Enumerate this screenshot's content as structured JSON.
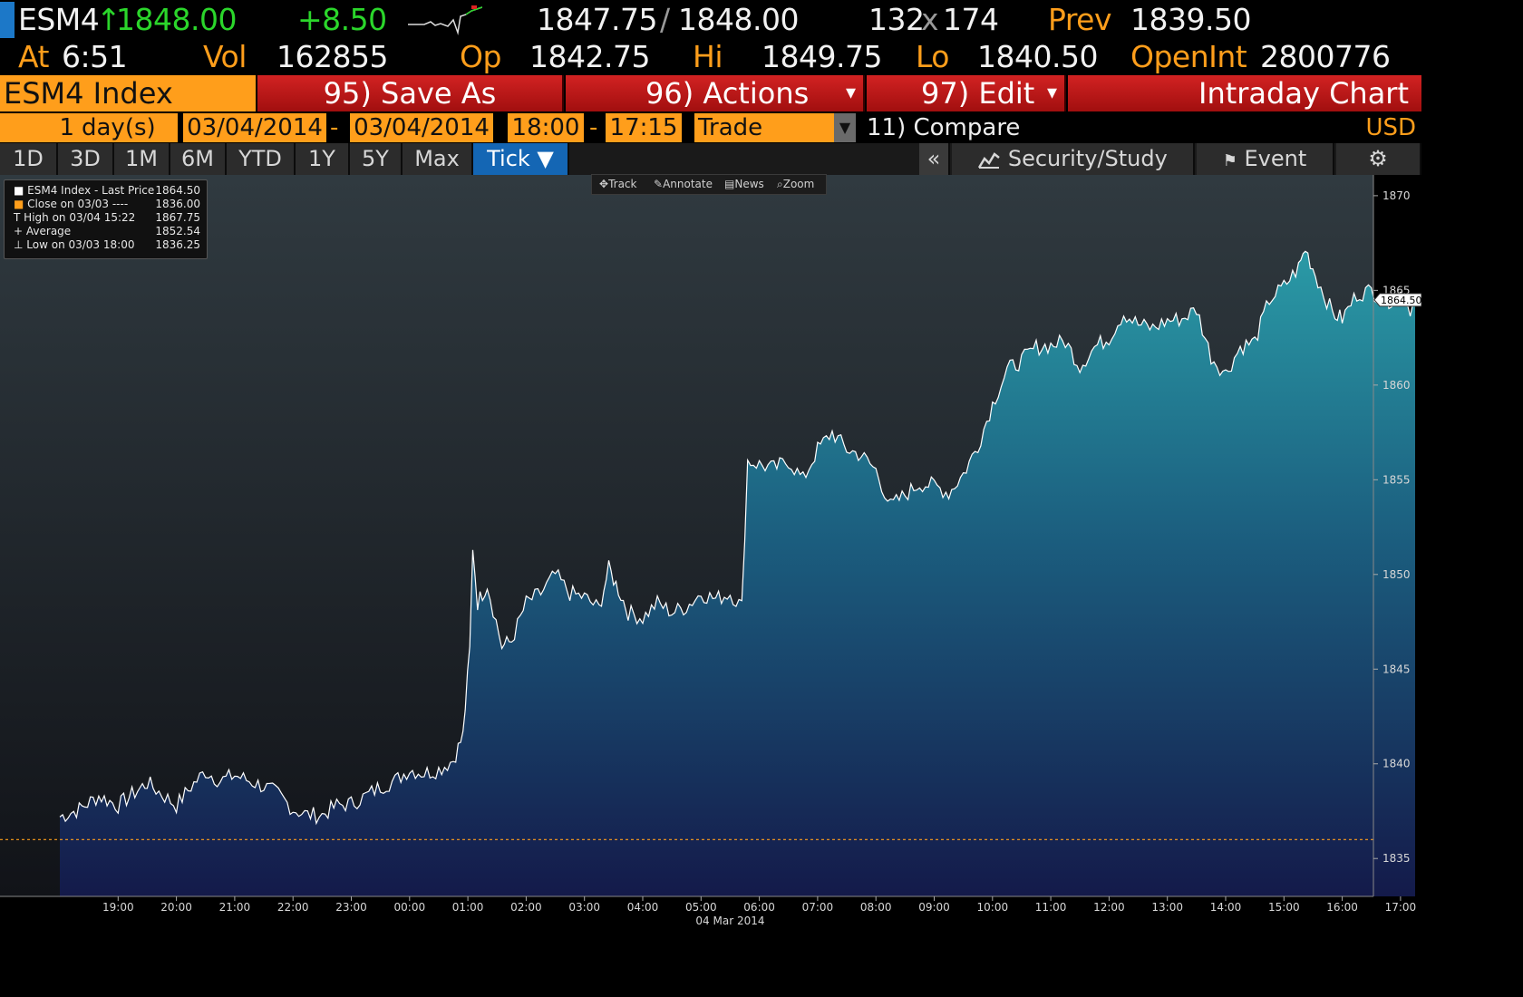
{
  "quote": {
    "ticker": "ESM4",
    "arrow": "↑",
    "last": "1848.00",
    "change": "+8.50",
    "bid": "1847.75",
    "bid_sep": "/",
    "ask": "1848.00",
    "bid_size": "132",
    "size_sep": "x",
    "ask_size": "174",
    "prev_label": "Prev",
    "prev": "1839.50",
    "at_label": "At",
    "time": "6:51",
    "vol_label": "Vol",
    "vol": "162855",
    "op_label": "Op",
    "op": "1842.75",
    "hi_label": "Hi",
    "hi": "1849.75",
    "lo_label": "Lo",
    "lo": "1840.50",
    "openint_label": "OpenInt",
    "openint": "2800776"
  },
  "function_bar": {
    "security": "ESM4 Index",
    "save_as": "95) Save As",
    "actions": "96) Actions",
    "edit": "97) Edit",
    "title": "Intraday Chart",
    "dropdown_glyph": "▾"
  },
  "settings_bar": {
    "days_value": "1",
    "days_label": "day(s)",
    "start_date": "03/04/2014",
    "end_date": "03/04/2014",
    "dash": "-",
    "start_time": "18:00",
    "end_time": "17:15",
    "event_type": "Trade",
    "compare": "11) Compare",
    "currency": "USD"
  },
  "range_bar": {
    "ranges": [
      "1D",
      "3D",
      "1M",
      "6M",
      "YTD",
      "1Y",
      "5Y",
      "Max"
    ],
    "active": "Tick ▼",
    "collapse": "«",
    "security_study": "Security/Study",
    "event": "Event",
    "settings_icon": "gear-icon"
  },
  "chart_toolbar": {
    "track": "Track",
    "annotate": "Annotate",
    "news": "News",
    "zoom": "Zoom"
  },
  "legend": {
    "rows": [
      {
        "symbol": "■",
        "label": "ESM4 Index - Last Price",
        "value": "1864.50"
      },
      {
        "symbol": "■",
        "label": "Close on 03/03 ----",
        "value": "1836.00"
      },
      {
        "symbol": "T",
        "label": "High on 03/04 15:22",
        "value": "1867.75"
      },
      {
        "symbol": "+",
        "label": "Average",
        "value": "1852.54"
      },
      {
        "symbol": "⊥",
        "label": "Low on 03/03 18:00",
        "value": "1836.25"
      }
    ]
  },
  "colors": {
    "amber": "#ff9e1b",
    "green": "#2bd62b",
    "red": "#c71a1a",
    "area_top": "#2a9aa6",
    "area_bottom": "#141a4a",
    "bg_top": "#303a40",
    "bg_bottom": "#111318"
  },
  "chart_data": {
    "type": "area",
    "ylim": [
      1833,
      1871
    ],
    "y_ticks": [
      "1870",
      "1865",
      "1860",
      "1855",
      "1850",
      "1845",
      "1840",
      "1835"
    ],
    "x_ticks": [
      "19:00",
      "20:00",
      "21:00",
      "22:00",
      "23:00",
      "00:00",
      "01:00",
      "02:00",
      "03:00",
      "04:00",
      "05:00",
      "06:00",
      "07:00",
      "08:00",
      "09:00",
      "10:00",
      "11:00",
      "12:00",
      "13:00",
      "14:00",
      "15:00",
      "16:00",
      "17:00"
    ],
    "date_label": "04 Mar 2014",
    "last_price_label": "1864.50",
    "reference_line": 1836.0,
    "series": [
      {
        "name": "ESM4 Index - Last Price",
        "points": [
          [
            "18:00",
            1837.2
          ],
          [
            "18:20",
            1837.6
          ],
          [
            "18:40",
            1838.3
          ],
          [
            "19:00",
            1837.8
          ],
          [
            "19:20",
            1838.6
          ],
          [
            "19:30",
            1839.0
          ],
          [
            "19:45",
            1838.4
          ],
          [
            "20:00",
            1837.8
          ],
          [
            "20:15",
            1838.8
          ],
          [
            "20:30",
            1839.6
          ],
          [
            "20:45",
            1839.1
          ],
          [
            "21:00",
            1839.4
          ],
          [
            "21:15",
            1839.1
          ],
          [
            "21:30",
            1838.8
          ],
          [
            "21:45",
            1838.4
          ],
          [
            "22:00",
            1837.6
          ],
          [
            "22:15",
            1837.3
          ],
          [
            "22:30",
            1837.3
          ],
          [
            "22:45",
            1837.8
          ],
          [
            "23:00",
            1837.9
          ],
          [
            "23:15",
            1838.3
          ],
          [
            "23:30",
            1838.8
          ],
          [
            "23:45",
            1839.1
          ],
          [
            "00:00",
            1839.7
          ],
          [
            "00:15",
            1839.5
          ],
          [
            "00:30",
            1839.7
          ],
          [
            "00:45",
            1840.2
          ],
          [
            "00:55",
            1841.5
          ],
          [
            "01:02",
            1846.0
          ],
          [
            "01:05",
            1851.5
          ],
          [
            "01:10",
            1848.5
          ],
          [
            "01:20",
            1849.5
          ],
          [
            "01:35",
            1846.2
          ],
          [
            "01:45",
            1846.5
          ],
          [
            "02:00",
            1848.5
          ],
          [
            "02:15",
            1849.0
          ],
          [
            "02:30",
            1850.0
          ],
          [
            "02:45",
            1849.0
          ],
          [
            "03:00",
            1848.8
          ],
          [
            "03:15",
            1848.2
          ],
          [
            "03:25",
            1850.3
          ],
          [
            "03:35",
            1849.2
          ],
          [
            "03:45",
            1848.0
          ],
          [
            "04:00",
            1847.7
          ],
          [
            "04:15",
            1848.5
          ],
          [
            "04:30",
            1848.0
          ],
          [
            "04:45",
            1848.3
          ],
          [
            "05:00",
            1849.0
          ],
          [
            "05:15",
            1848.7
          ],
          [
            "05:30",
            1849.0
          ],
          [
            "05:42",
            1848.3
          ],
          [
            "05:48",
            1856.0
          ],
          [
            "06:00",
            1855.8
          ],
          [
            "06:15",
            1855.6
          ],
          [
            "06:30",
            1856.0
          ],
          [
            "06:45",
            1855.0
          ],
          [
            "07:00",
            1856.6
          ],
          [
            "07:15",
            1857.5
          ],
          [
            "07:30",
            1856.6
          ],
          [
            "07:45",
            1856.3
          ],
          [
            "08:00",
            1855.5
          ],
          [
            "08:15",
            1853.6
          ],
          [
            "08:30",
            1854.2
          ],
          [
            "08:45",
            1854.8
          ],
          [
            "09:00",
            1854.7
          ],
          [
            "09:15",
            1854.3
          ],
          [
            "09:30",
            1855.3
          ],
          [
            "09:45",
            1856.8
          ],
          [
            "10:00",
            1859.0
          ],
          [
            "10:15",
            1860.8
          ],
          [
            "10:30",
            1861.3
          ],
          [
            "10:45",
            1862.0
          ],
          [
            "11:00",
            1862.1
          ],
          [
            "11:15",
            1862.3
          ],
          [
            "11:30",
            1861.0
          ],
          [
            "11:45",
            1862.0
          ],
          [
            "12:00",
            1862.5
          ],
          [
            "12:15",
            1863.8
          ],
          [
            "12:30",
            1863.2
          ],
          [
            "12:45",
            1863.0
          ],
          [
            "13:00",
            1863.4
          ],
          [
            "13:15",
            1863.5
          ],
          [
            "13:30",
            1864.0
          ],
          [
            "13:45",
            1861.5
          ],
          [
            "14:00",
            1860.6
          ],
          [
            "14:15",
            1862.0
          ],
          [
            "14:30",
            1862.3
          ],
          [
            "14:45",
            1864.5
          ],
          [
            "15:00",
            1865.2
          ],
          [
            "15:15",
            1866.2
          ],
          [
            "15:22",
            1867.2
          ],
          [
            "15:35",
            1865.5
          ],
          [
            "15:50",
            1863.8
          ],
          [
            "16:00",
            1863.5
          ],
          [
            "16:15",
            1864.8
          ],
          [
            "16:30",
            1865.0
          ],
          [
            "16:45",
            1864.4
          ],
          [
            "17:00",
            1864.8
          ],
          [
            "17:10",
            1864.0
          ],
          [
            "17:15",
            1864.5
          ]
        ]
      }
    ]
  }
}
